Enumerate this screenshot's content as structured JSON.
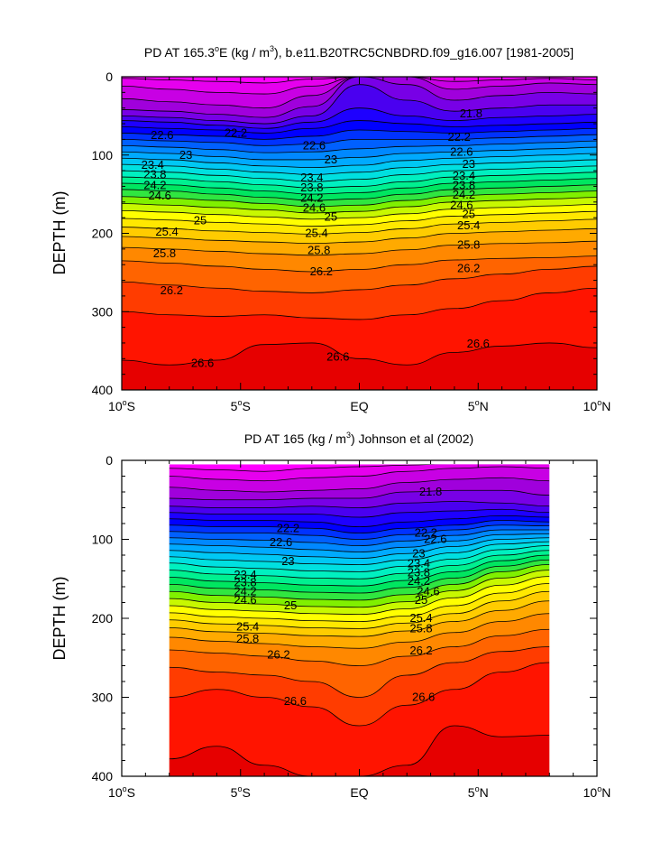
{
  "chart_data": [
    {
      "type": "contour",
      "title_parts": [
        "PD AT 165.3",
        "o",
        "E (kg / m",
        "3",
        "), b.e11.B20TRC5CNBDRD.f09_g16.007 [1981-2005]"
      ],
      "ylabel": "DEPTH (m)",
      "xlabel": "",
      "xlim": [
        -10,
        10
      ],
      "ylim": [
        400,
        0
      ],
      "x_ticks": [
        -10,
        -5,
        0,
        5,
        10
      ],
      "x_tick_labels": [
        {
          "value": "10",
          "deg": "o",
          "hemi": "S"
        },
        {
          "value": "5",
          "deg": "o",
          "hemi": "S"
        },
        {
          "value": "EQ",
          "deg": "",
          "hemi": ""
        },
        {
          "value": "5",
          "deg": "o",
          "hemi": "N"
        },
        {
          "value": "10",
          "deg": "o",
          "hemi": "N"
        }
      ],
      "y_ticks": [
        0,
        100,
        200,
        300,
        400
      ],
      "y_tick_labels": [
        "0",
        "100",
        "200",
        "300",
        "400"
      ],
      "data_extent": [
        -10,
        10
      ],
      "contour_interval": 0.2,
      "levels": [
        21.4,
        21.6,
        21.8,
        22.0,
        22.2,
        22.4,
        22.6,
        22.8,
        23.0,
        23.2,
        23.4,
        23.6,
        23.8,
        24.0,
        24.2,
        24.4,
        24.6,
        24.8,
        25.0,
        25.2,
        25.4,
        25.6,
        25.8,
        26.0,
        26.2,
        26.4,
        26.6,
        26.8
      ],
      "isopycnal_profile_x": [
        -10,
        -8,
        -6,
        -4,
        -2,
        0,
        2,
        4,
        6,
        8,
        10
      ],
      "isopycnal_depths": [
        [
          2,
          4,
          6,
          8,
          3,
          0,
          0,
          0,
          0,
          0,
          0
        ],
        [
          12,
          16,
          20,
          22,
          12,
          0,
          0,
          6,
          4,
          2,
          4
        ],
        [
          28,
          32,
          36,
          40,
          24,
          0,
          0,
          16,
          12,
          8,
          10
        ],
        [
          42,
          44,
          48,
          52,
          38,
          0,
          10,
          30,
          24,
          20,
          22
        ],
        [
          50,
          52,
          56,
          60,
          50,
          10,
          30,
          44,
          40,
          36,
          36
        ],
        [
          56,
          58,
          62,
          66,
          58,
          40,
          50,
          56,
          52,
          50,
          48
        ],
        [
          64,
          66,
          68,
          72,
          66,
          56,
          60,
          64,
          62,
          60,
          58
        ],
        [
          72,
          74,
          76,
          80,
          76,
          68,
          70,
          72,
          70,
          68,
          66
        ],
        [
          80,
          82,
          84,
          88,
          86,
          80,
          80,
          80,
          78,
          76,
          74
        ],
        [
          88,
          90,
          93,
          97,
          96,
          92,
          89,
          88,
          86,
          84,
          82
        ],
        [
          96,
          98,
          102,
          106,
          106,
          103,
          98,
          96,
          94,
          92,
          90
        ],
        [
          104,
          106,
          110,
          114,
          116,
          113,
          107,
          104,
          102,
          100,
          98
        ],
        [
          112,
          114,
          118,
          122,
          125,
          122,
          116,
          112,
          110,
          108,
          106
        ],
        [
          120,
          122,
          126,
          130,
          134,
          131,
          125,
          120,
          118,
          116,
          114
        ],
        [
          128,
          130,
          134,
          138,
          142,
          140,
          134,
          128,
          126,
          124,
          122
        ],
        [
          136,
          138,
          142,
          146,
          150,
          148,
          142,
          136,
          134,
          132,
          130
        ],
        [
          144,
          146,
          150,
          154,
          158,
          156,
          150,
          144,
          142,
          140,
          138
        ],
        [
          153,
          155,
          158,
          162,
          166,
          164,
          158,
          152,
          150,
          148,
          146
        ],
        [
          162,
          164,
          167,
          170,
          174,
          172,
          166,
          160,
          158,
          156,
          154
        ],
        [
          171,
          173,
          176,
          179,
          182,
          180,
          175,
          169,
          167,
          165,
          163
        ],
        [
          181,
          183,
          186,
          188,
          191,
          189,
          184,
          178,
          176,
          174,
          172
        ],
        [
          192,
          194,
          197,
          199,
          201,
          199,
          194,
          188,
          186,
          184,
          182
        ],
        [
          204,
          206,
          209,
          211,
          213,
          211,
          206,
          200,
          198,
          196,
          194
        ],
        [
          218,
          220,
          223,
          226,
          228,
          226,
          221,
          215,
          213,
          212,
          210
        ],
        [
          235,
          238,
          242,
          246,
          249,
          246,
          240,
          234,
          232,
          231,
          229
        ],
        [
          262,
          266,
          270,
          274,
          276,
          272,
          266,
          258,
          252,
          246,
          242
        ],
        [
          300,
          304,
          306,
          304,
          308,
          310,
          304,
          296,
          286,
          276,
          270
        ],
        [
          362,
          368,
          362,
          342,
          340,
          360,
          368,
          352,
          344,
          340,
          346
        ]
      ],
      "contour_labels": [
        {
          "text": "22.2",
          "x": -5.2,
          "y": 72
        },
        {
          "text": "22.6",
          "x": -8.3,
          "y": 75
        },
        {
          "text": "22.6",
          "x": -1.9,
          "y": 88
        },
        {
          "text": "22.2",
          "x": 4.2,
          "y": 77
        },
        {
          "text": "22.6",
          "x": 4.3,
          "y": 96
        },
        {
          "text": "21.8",
          "x": 4.7,
          "y": 47
        },
        {
          "text": "23",
          "x": -7.3,
          "y": 100
        },
        {
          "text": "23",
          "x": -1.2,
          "y": 106
        },
        {
          "text": "23",
          "x": 4.6,
          "y": 112
        },
        {
          "text": "23.4",
          "x": -8.7,
          "y": 113
        },
        {
          "text": "23.4",
          "x": -2.0,
          "y": 129
        },
        {
          "text": "23.4",
          "x": 4.4,
          "y": 127
        },
        {
          "text": "23.8",
          "x": -8.6,
          "y": 125
        },
        {
          "text": "23.8",
          "x": -2.0,
          "y": 142
        },
        {
          "text": "23.8",
          "x": 4.4,
          "y": 139
        },
        {
          "text": "24.2",
          "x": -8.6,
          "y": 139
        },
        {
          "text": "24.2",
          "x": -2.0,
          "y": 155
        },
        {
          "text": "24.2",
          "x": 4.4,
          "y": 151
        },
        {
          "text": "24.6",
          "x": -8.4,
          "y": 152
        },
        {
          "text": "24.6",
          "x": -1.9,
          "y": 168
        },
        {
          "text": "24.6",
          "x": 4.3,
          "y": 164
        },
        {
          "text": "25",
          "x": 4.6,
          "y": 176
        },
        {
          "text": "25",
          "x": -6.7,
          "y": 184
        },
        {
          "text": "25",
          "x": -1.2,
          "y": 179
        },
        {
          "text": "25.4",
          "x": -8.1,
          "y": 198
        },
        {
          "text": "25.4",
          "x": -1.8,
          "y": 200
        },
        {
          "text": "25.4",
          "x": 4.6,
          "y": 190
        },
        {
          "text": "25.8",
          "x": -8.2,
          "y": 226
        },
        {
          "text": "25.8",
          "x": -1.7,
          "y": 222
        },
        {
          "text": "25.8",
          "x": 4.6,
          "y": 215
        },
        {
          "text": "26.2",
          "x": -1.6,
          "y": 249
        },
        {
          "text": "26.2",
          "x": 4.6,
          "y": 245
        },
        {
          "text": "26.2",
          "x": -7.9,
          "y": 273
        },
        {
          "text": "26.6",
          "x": -6.6,
          "y": 366
        },
        {
          "text": "26.6",
          "x": -0.9,
          "y": 358
        },
        {
          "text": "26.6",
          "x": 5.0,
          "y": 341
        }
      ]
    },
    {
      "type": "contour",
      "title_parts": [
        "PD AT 165 (kg / m",
        "3",
        ") Johnson et al (2002)"
      ],
      "ylabel": "DEPTH (m)",
      "xlabel": "",
      "xlim": [
        -10,
        10
      ],
      "ylim": [
        400,
        0
      ],
      "x_ticks": [
        -10,
        -5,
        0,
        5,
        10
      ],
      "x_tick_labels": [
        {
          "value": "10",
          "deg": "o",
          "hemi": "S"
        },
        {
          "value": "5",
          "deg": "o",
          "hemi": "S"
        },
        {
          "value": "EQ",
          "deg": "",
          "hemi": ""
        },
        {
          "value": "5",
          "deg": "o",
          "hemi": "N"
        },
        {
          "value": "10",
          "deg": "o",
          "hemi": "N"
        }
      ],
      "y_ticks": [
        0,
        100,
        200,
        300,
        400
      ],
      "y_tick_labels": [
        "0",
        "100",
        "200",
        "300",
        "400"
      ],
      "data_extent": [
        -8,
        8
      ],
      "data_top_depth": 5,
      "contour_interval": 0.2,
      "levels": [
        21.4,
        21.6,
        21.8,
        22.0,
        22.2,
        22.4,
        22.6,
        22.8,
        23.0,
        23.2,
        23.4,
        23.6,
        23.8,
        24.0,
        24.2,
        24.4,
        24.6,
        24.8,
        25.0,
        25.2,
        25.4,
        25.6,
        25.8,
        26.0,
        26.2,
        26.4,
        26.6,
        26.8
      ],
      "isopycnal_profile_x": [
        -8,
        -6,
        -4,
        -2,
        0,
        2,
        4,
        6,
        8
      ],
      "isopycnal_depths": [
        [
          10,
          12,
          14,
          10,
          8,
          6,
          4,
          2,
          2
        ],
        [
          20,
          24,
          26,
          22,
          20,
          14,
          10,
          8,
          10
        ],
        [
          34,
          38,
          40,
          38,
          36,
          28,
          24,
          22,
          26
        ],
        [
          48,
          50,
          50,
          48,
          48,
          40,
          38,
          38,
          44
        ],
        [
          58,
          60,
          60,
          58,
          60,
          54,
          52,
          54,
          58
        ],
        [
          66,
          68,
          68,
          68,
          72,
          66,
          64,
          62,
          66
        ],
        [
          74,
          76,
          76,
          78,
          84,
          78,
          74,
          70,
          72
        ],
        [
          82,
          84,
          84,
          86,
          92,
          86,
          82,
          76,
          78
        ],
        [
          90,
          92,
          92,
          95,
          100,
          94,
          88,
          82,
          83
        ],
        [
          98,
          100,
          101,
          104,
          108,
          102,
          95,
          88,
          88
        ],
        [
          106,
          108,
          110,
          113,
          116,
          110,
          102,
          94,
          93
        ],
        [
          114,
          117,
          119,
          122,
          124,
          118,
          109,
          100,
          98
        ],
        [
          122,
          126,
          128,
          131,
          132,
          126,
          117,
          106,
          103
        ],
        [
          130,
          135,
          137,
          140,
          141,
          134,
          125,
          113,
          108
        ],
        [
          139,
          144,
          146,
          149,
          150,
          143,
          133,
          120,
          114
        ],
        [
          148,
          153,
          155,
          158,
          159,
          152,
          141,
          127,
          120
        ],
        [
          157,
          162,
          164,
          167,
          168,
          161,
          149,
          134,
          126
        ],
        [
          166,
          171,
          173,
          176,
          177,
          170,
          157,
          141,
          132
        ],
        [
          175,
          180,
          182,
          185,
          186,
          179,
          165,
          149,
          139
        ],
        [
          184,
          189,
          191,
          194,
          195,
          188,
          174,
          158,
          147
        ],
        [
          193,
          198,
          200,
          203,
          204,
          197,
          184,
          168,
          156
        ],
        [
          202,
          207,
          209,
          212,
          213,
          206,
          194,
          178,
          166
        ],
        [
          212,
          217,
          219,
          222,
          223,
          216,
          204,
          190,
          178
        ],
        [
          224,
          229,
          232,
          236,
          238,
          230,
          218,
          204,
          194
        ],
        [
          240,
          244,
          248,
          254,
          260,
          248,
          236,
          222,
          214
        ],
        [
          262,
          268,
          272,
          280,
          300,
          272,
          256,
          242,
          236
        ],
        [
          300,
          290,
          300,
          312,
          336,
          310,
          290,
          268,
          256
        ],
        [
          378,
          362,
          386,
          400,
          400,
          386,
          336,
          350,
          348
        ]
      ],
      "contour_labels": [
        {
          "text": "21.8",
          "x": 3.0,
          "y": 40
        },
        {
          "text": "22.2",
          "x": -3.0,
          "y": 86
        },
        {
          "text": "22.2",
          "x": 2.8,
          "y": 92
        },
        {
          "text": "22.6",
          "x": -3.3,
          "y": 104
        },
        {
          "text": "22.6",
          "x": 3.2,
          "y": 100
        },
        {
          "text": "23",
          "x": -3.0,
          "y": 128
        },
        {
          "text": "23",
          "x": 2.5,
          "y": 118
        },
        {
          "text": "23.4",
          "x": -4.8,
          "y": 145
        },
        {
          "text": "23.4",
          "x": 2.5,
          "y": 131
        },
        {
          "text": "23.8",
          "x": -4.8,
          "y": 155
        },
        {
          "text": "23.8",
          "x": 2.5,
          "y": 142
        },
        {
          "text": "24.2",
          "x": -4.8,
          "y": 166
        },
        {
          "text": "24.2",
          "x": 2.5,
          "y": 153
        },
        {
          "text": "24.6",
          "x": -4.8,
          "y": 177
        },
        {
          "text": "24.6",
          "x": 2.9,
          "y": 166
        },
        {
          "text": "25",
          "x": -2.9,
          "y": 184
        },
        {
          "text": "25",
          "x": 2.6,
          "y": 177
        },
        {
          "text": "25.4",
          "x": -4.7,
          "y": 211
        },
        {
          "text": "25.4",
          "x": 2.6,
          "y": 200
        },
        {
          "text": "25.8",
          "x": -4.7,
          "y": 226
        },
        {
          "text": "25.8",
          "x": 2.6,
          "y": 213
        },
        {
          "text": "26.2",
          "x": -3.4,
          "y": 246
        },
        {
          "text": "26.2",
          "x": 2.6,
          "y": 241
        },
        {
          "text": "26.6",
          "x": -2.7,
          "y": 305
        },
        {
          "text": "26.6",
          "x": 2.7,
          "y": 300
        }
      ]
    }
  ]
}
